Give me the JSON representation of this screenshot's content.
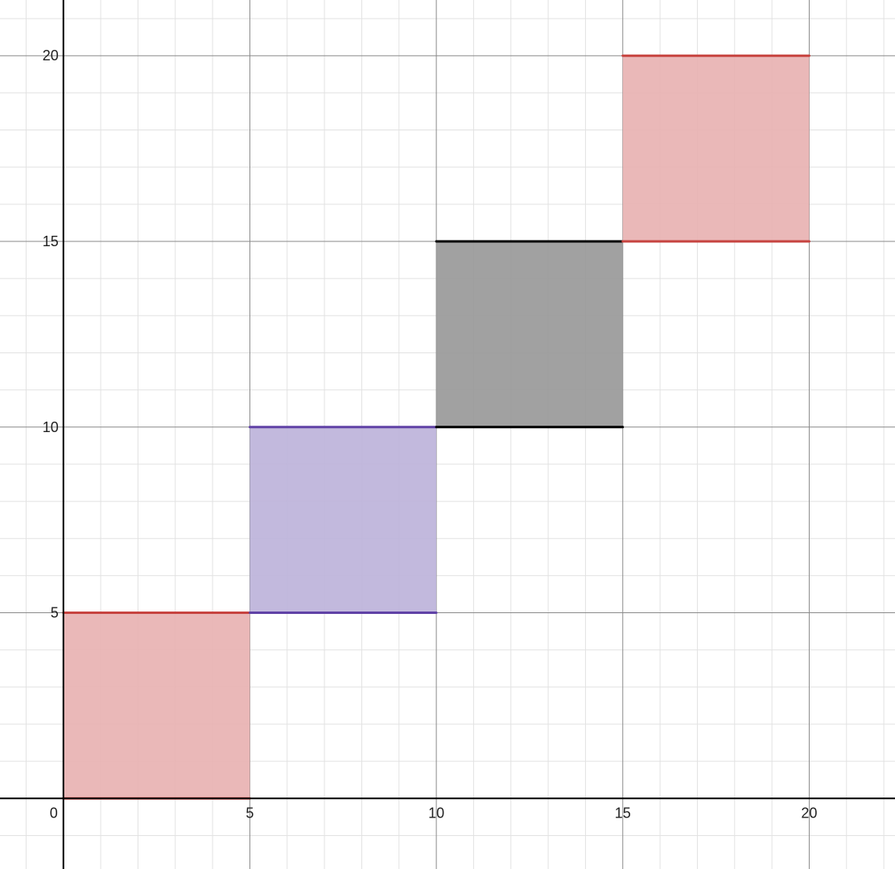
{
  "chart_data": {
    "type": "area",
    "title": "",
    "xlabel": "",
    "ylabel": "",
    "xlim": [
      -1.7,
      22.3
    ],
    "ylim": [
      -1.9,
      21.5
    ],
    "grid": true,
    "minor_grid_step": 1,
    "major_grid_step": 5,
    "x_ticks": [
      0,
      5,
      10,
      15,
      20
    ],
    "y_ticks": [
      5,
      10,
      15,
      20
    ],
    "x_tick_labels": [
      "0",
      "5",
      "10",
      "15",
      "20"
    ],
    "y_tick_labels": [
      "5",
      "10",
      "15",
      "20"
    ],
    "regions": [
      {
        "x": [
          0,
          5
        ],
        "y": [
          0,
          5
        ],
        "line_color": "#c74440",
        "fill_color": "#e8b2b2"
      },
      {
        "x": [
          5,
          10
        ],
        "y": [
          5,
          10
        ],
        "line_color": "#6042a6",
        "fill_color": "#bdb3da"
      },
      {
        "x": [
          10,
          15
        ],
        "y": [
          10,
          15
        ],
        "line_color": "#000000",
        "fill_color": "#999999"
      },
      {
        "x": [
          15,
          20
        ],
        "y": [
          15,
          20
        ],
        "line_color": "#c74440",
        "fill_color": "#e8b2b2"
      }
    ]
  }
}
